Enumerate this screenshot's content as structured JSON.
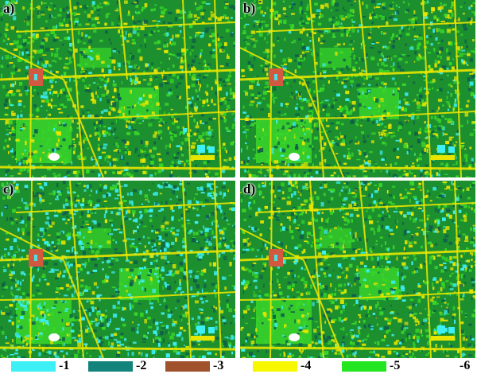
{
  "panels": [
    {
      "id": "a",
      "label": "a)"
    },
    {
      "id": "b",
      "label": "b)"
    },
    {
      "id": "c",
      "label": "c)"
    },
    {
      "id": "d",
      "label": "d)"
    }
  ],
  "legend": [
    {
      "label": "-1",
      "color": "#3cf0f6"
    },
    {
      "label": "-2",
      "color": "#13847c"
    },
    {
      "label": "-3",
      "color": "#a0522d"
    },
    {
      "label": "-4",
      "color": "#f7f700"
    },
    {
      "label": "-5",
      "color": "#23e620"
    },
    {
      "label": "-6",
      "color": "#ffffff"
    }
  ],
  "colors": {
    "base_green": "#1c8f2e",
    "bright_green": "#39d62a",
    "dark_teal": "#0f5f4a",
    "cyan": "#3cf0f6",
    "yellow": "#e8e600",
    "red_block": "#d2593f",
    "white": "#ffffff"
  }
}
